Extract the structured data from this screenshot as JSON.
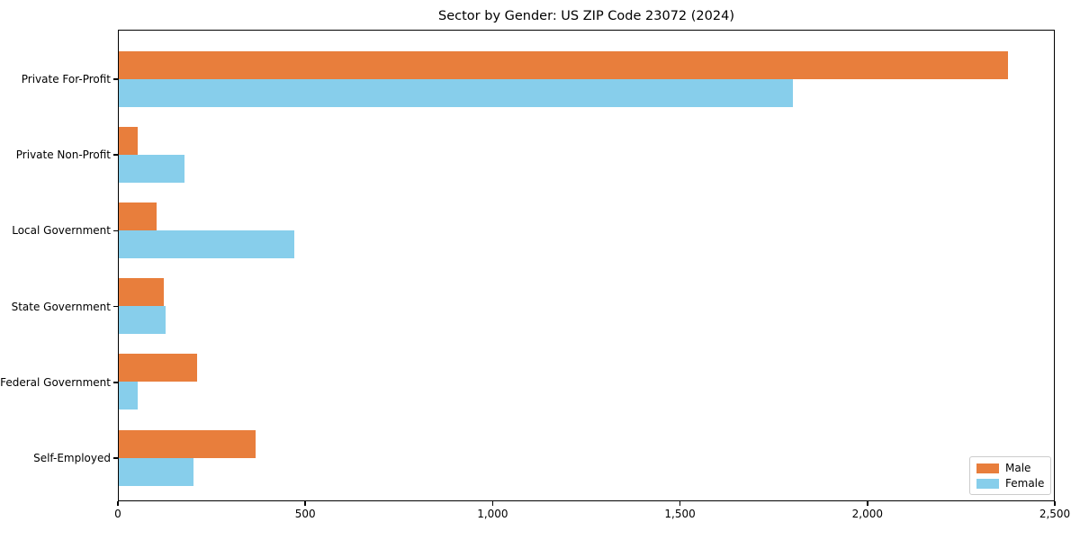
{
  "chart_data": {
    "type": "bar",
    "orientation": "horizontal",
    "title": "Sector by Gender: US ZIP Code 23072 (2024)",
    "categories": [
      "Private For-Profit",
      "Private Non-Profit",
      "Local Government",
      "State Government",
      "Federal Government",
      "Self-Employed"
    ],
    "series": [
      {
        "name": "Male",
        "color": "#e87e3c",
        "values": [
          2380,
          50,
          100,
          120,
          210,
          365
        ]
      },
      {
        "name": "Female",
        "color": "#87ceeb",
        "values": [
          1805,
          175,
          470,
          125,
          50,
          200
        ]
      }
    ],
    "xlabel": "",
    "ylabel": "",
    "xlim": [
      0,
      2500
    ],
    "x_ticks": [
      0,
      500,
      1000,
      1500,
      2000,
      2500
    ],
    "x_tick_labels": [
      "0",
      "500",
      "1,000",
      "1,500",
      "2,000",
      "2,500"
    ],
    "legend_position": "lower right",
    "grid": false,
    "plot_border_color": "#000000",
    "background_color": "#ffffff"
  }
}
